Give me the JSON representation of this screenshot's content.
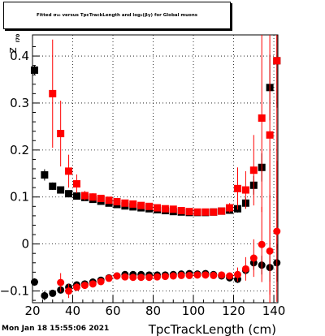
{
  "title": "Fitted σ₀₀ versus TpcTrackLength and log₂(βγ) for Global muons",
  "timestamp": "Mon Jan 18 15:55:06 2021",
  "chart_data": {
    "type": "scatter",
    "title": "Fitted σ₀₀ versus TpcTrackLength and log₂(βγ) for Global muons",
    "xlabel": "TpcTrackLength (cm)",
    "ylabel": "z",
    "ylabel_sub": "I70",
    "xlim": [
      20,
      142
    ],
    "ylim": [
      -0.125,
      0.445
    ],
    "x_ticks": [
      20,
      40,
      60,
      80,
      100,
      120,
      140
    ],
    "y_ticks": [
      -0.1,
      0,
      0.1,
      0.2,
      0.3,
      0.4
    ],
    "x_tick_labels": [
      "20",
      "40",
      "60",
      "80",
      "100",
      "120",
      "140"
    ],
    "y_tick_labels": [
      "−0.1",
      "0",
      "0.1",
      "0.2",
      "0.3",
      "0.4"
    ],
    "grid": true,
    "colors": {
      "black": "#000000",
      "red": "#ff0000"
    },
    "series": [
      {
        "marker": "square",
        "color": "#000000",
        "x": [
          21,
          26,
          30,
          34,
          38,
          42,
          46,
          50,
          54,
          58,
          62,
          66,
          70,
          74,
          78,
          82,
          86,
          90,
          94,
          98,
          102,
          106,
          110,
          114,
          118,
          122,
          126,
          130,
          134,
          138,
          141.5
        ],
        "y": [
          0.37,
          0.147,
          0.123,
          0.115,
          0.107,
          0.102,
          0.099,
          0.095,
          0.091,
          0.087,
          0.084,
          0.081,
          0.079,
          0.077,
          0.075,
          0.073,
          0.071,
          0.069,
          0.068,
          0.067,
          0.067,
          0.067,
          0.068,
          0.07,
          0.072,
          0.075,
          0.087,
          0.125,
          0.163,
          0.333,
          0.39
        ],
        "err": [
          0.01,
          0.012,
          0.008,
          0.007,
          0.006,
          0.005,
          0.005,
          0.004,
          0.004,
          0.004,
          0.004,
          0.004,
          0.004,
          0.004,
          0.004,
          0.004,
          0.004,
          0.004,
          0.004,
          0.004,
          0.004,
          0.004,
          0.004,
          0.005,
          0.006,
          0.008,
          0.012,
          0.02,
          0.03,
          0.07,
          0.1
        ]
      },
      {
        "marker": "square",
        "color": "#ff0000",
        "x": [
          30,
          34,
          38,
          42,
          46,
          50,
          54,
          58,
          62,
          66,
          70,
          74,
          78,
          82,
          86,
          90,
          94,
          98,
          102,
          106,
          110,
          114,
          118,
          122,
          126,
          130,
          134,
          138,
          141.5
        ],
        "y": [
          0.32,
          0.235,
          0.155,
          0.128,
          0.103,
          0.1,
          0.097,
          0.093,
          0.09,
          0.087,
          0.085,
          0.082,
          0.08,
          0.077,
          0.075,
          0.074,
          0.071,
          0.069,
          0.068,
          0.068,
          0.068,
          0.07,
          0.077,
          0.118,
          0.115,
          0.157,
          0.268,
          0.232,
          0.39
        ],
        "err": [
          0.115,
          0.07,
          0.035,
          0.02,
          0.01,
          0.008,
          0.006,
          0.005,
          0.005,
          0.004,
          0.004,
          0.004,
          0.004,
          0.004,
          0.004,
          0.004,
          0.004,
          0.004,
          0.004,
          0.004,
          0.004,
          0.005,
          0.01,
          0.045,
          0.04,
          0.075,
          0.2,
          0.34,
          0.4
        ]
      },
      {
        "marker": "circle",
        "color": "#000000",
        "x": [
          21,
          26,
          30,
          34,
          38,
          42,
          46,
          50,
          54,
          58,
          62,
          66,
          70,
          74,
          78,
          82,
          86,
          90,
          94,
          98,
          102,
          106,
          110,
          114,
          118,
          122,
          126,
          130,
          134,
          138,
          141.5
        ],
        "y": [
          -0.081,
          -0.11,
          -0.105,
          -0.098,
          -0.092,
          -0.087,
          -0.085,
          -0.081,
          -0.077,
          -0.072,
          -0.068,
          -0.065,
          -0.065,
          -0.065,
          -0.066,
          -0.066,
          -0.066,
          -0.065,
          -0.064,
          -0.063,
          -0.064,
          -0.063,
          -0.065,
          -0.068,
          -0.072,
          -0.075,
          -0.056,
          -0.04,
          -0.045,
          -0.05,
          -0.04
        ],
        "err": [
          0.008,
          0.01,
          0.007,
          0.006,
          0.005,
          0.005,
          0.004,
          0.004,
          0.004,
          0.004,
          0.004,
          0.004,
          0.004,
          0.004,
          0.004,
          0.004,
          0.004,
          0.004,
          0.004,
          0.004,
          0.004,
          0.004,
          0.004,
          0.005,
          0.006,
          0.008,
          0.01,
          0.015,
          0.02,
          0.03,
          0.04
        ]
      },
      {
        "marker": "circle",
        "color": "#ff0000",
        "x": [
          34,
          38,
          42,
          46,
          50,
          54,
          58,
          62,
          66,
          70,
          74,
          78,
          82,
          86,
          90,
          94,
          98,
          102,
          106,
          110,
          114,
          118,
          122,
          126,
          130,
          134,
          138,
          141.5
        ],
        "y": [
          -0.082,
          -0.1,
          -0.092,
          -0.088,
          -0.085,
          -0.08,
          -0.073,
          -0.068,
          -0.07,
          -0.071,
          -0.071,
          -0.071,
          -0.07,
          -0.069,
          -0.068,
          -0.067,
          -0.067,
          -0.066,
          -0.066,
          -0.067,
          -0.066,
          -0.068,
          -0.065,
          -0.053,
          -0.03,
          -0.001,
          -0.015,
          0.027
        ],
        "err": [
          0.02,
          0.015,
          0.008,
          0.006,
          0.005,
          0.005,
          0.004,
          0.004,
          0.004,
          0.004,
          0.004,
          0.004,
          0.004,
          0.004,
          0.004,
          0.004,
          0.004,
          0.004,
          0.004,
          0.004,
          0.004,
          0.006,
          0.015,
          0.025,
          0.04,
          0.08,
          0.12,
          0.15
        ]
      }
    ]
  }
}
